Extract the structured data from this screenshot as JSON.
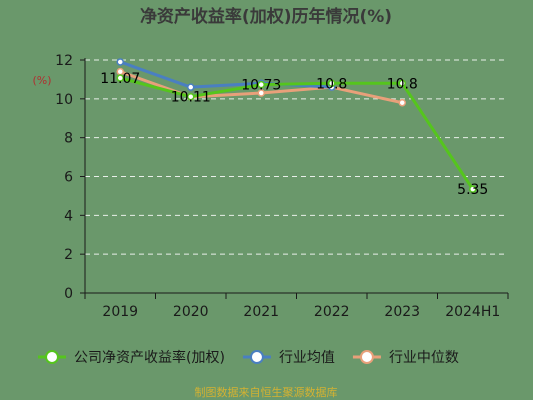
{
  "chart_data": {
    "type": "line",
    "title": "净资产收益率(加权)历年情况(%)",
    "ylabel": "(%)",
    "xlabel": "",
    "categories": [
      "2019",
      "2020",
      "2021",
      "2022",
      "2023",
      "2024H1"
    ],
    "ylim": [
      0,
      12
    ],
    "yticks": [
      0,
      2,
      4,
      6,
      8,
      10,
      12
    ],
    "grid": true,
    "legend_position": "bottom",
    "series": [
      {
        "name": "公司净资产收益率(加权)",
        "color": "#55c51d",
        "values": [
          11.07,
          10.11,
          10.73,
          10.8,
          10.8,
          5.35
        ],
        "labels": [
          "11.07",
          "10.11",
          "10.73",
          "10.8",
          "10.8",
          "5.35"
        ]
      },
      {
        "name": "行业均值",
        "color": "#4a7fc1",
        "values": [
          11.9,
          10.6,
          10.8,
          10.6,
          null,
          null
        ],
        "labels": []
      },
      {
        "name": "行业中位数",
        "color": "#e8a07a",
        "values": [
          11.4,
          10.1,
          10.3,
          10.6,
          9.8,
          null
        ],
        "labels": []
      }
    ]
  },
  "footer": "制图数据来自恒生聚源数据库"
}
